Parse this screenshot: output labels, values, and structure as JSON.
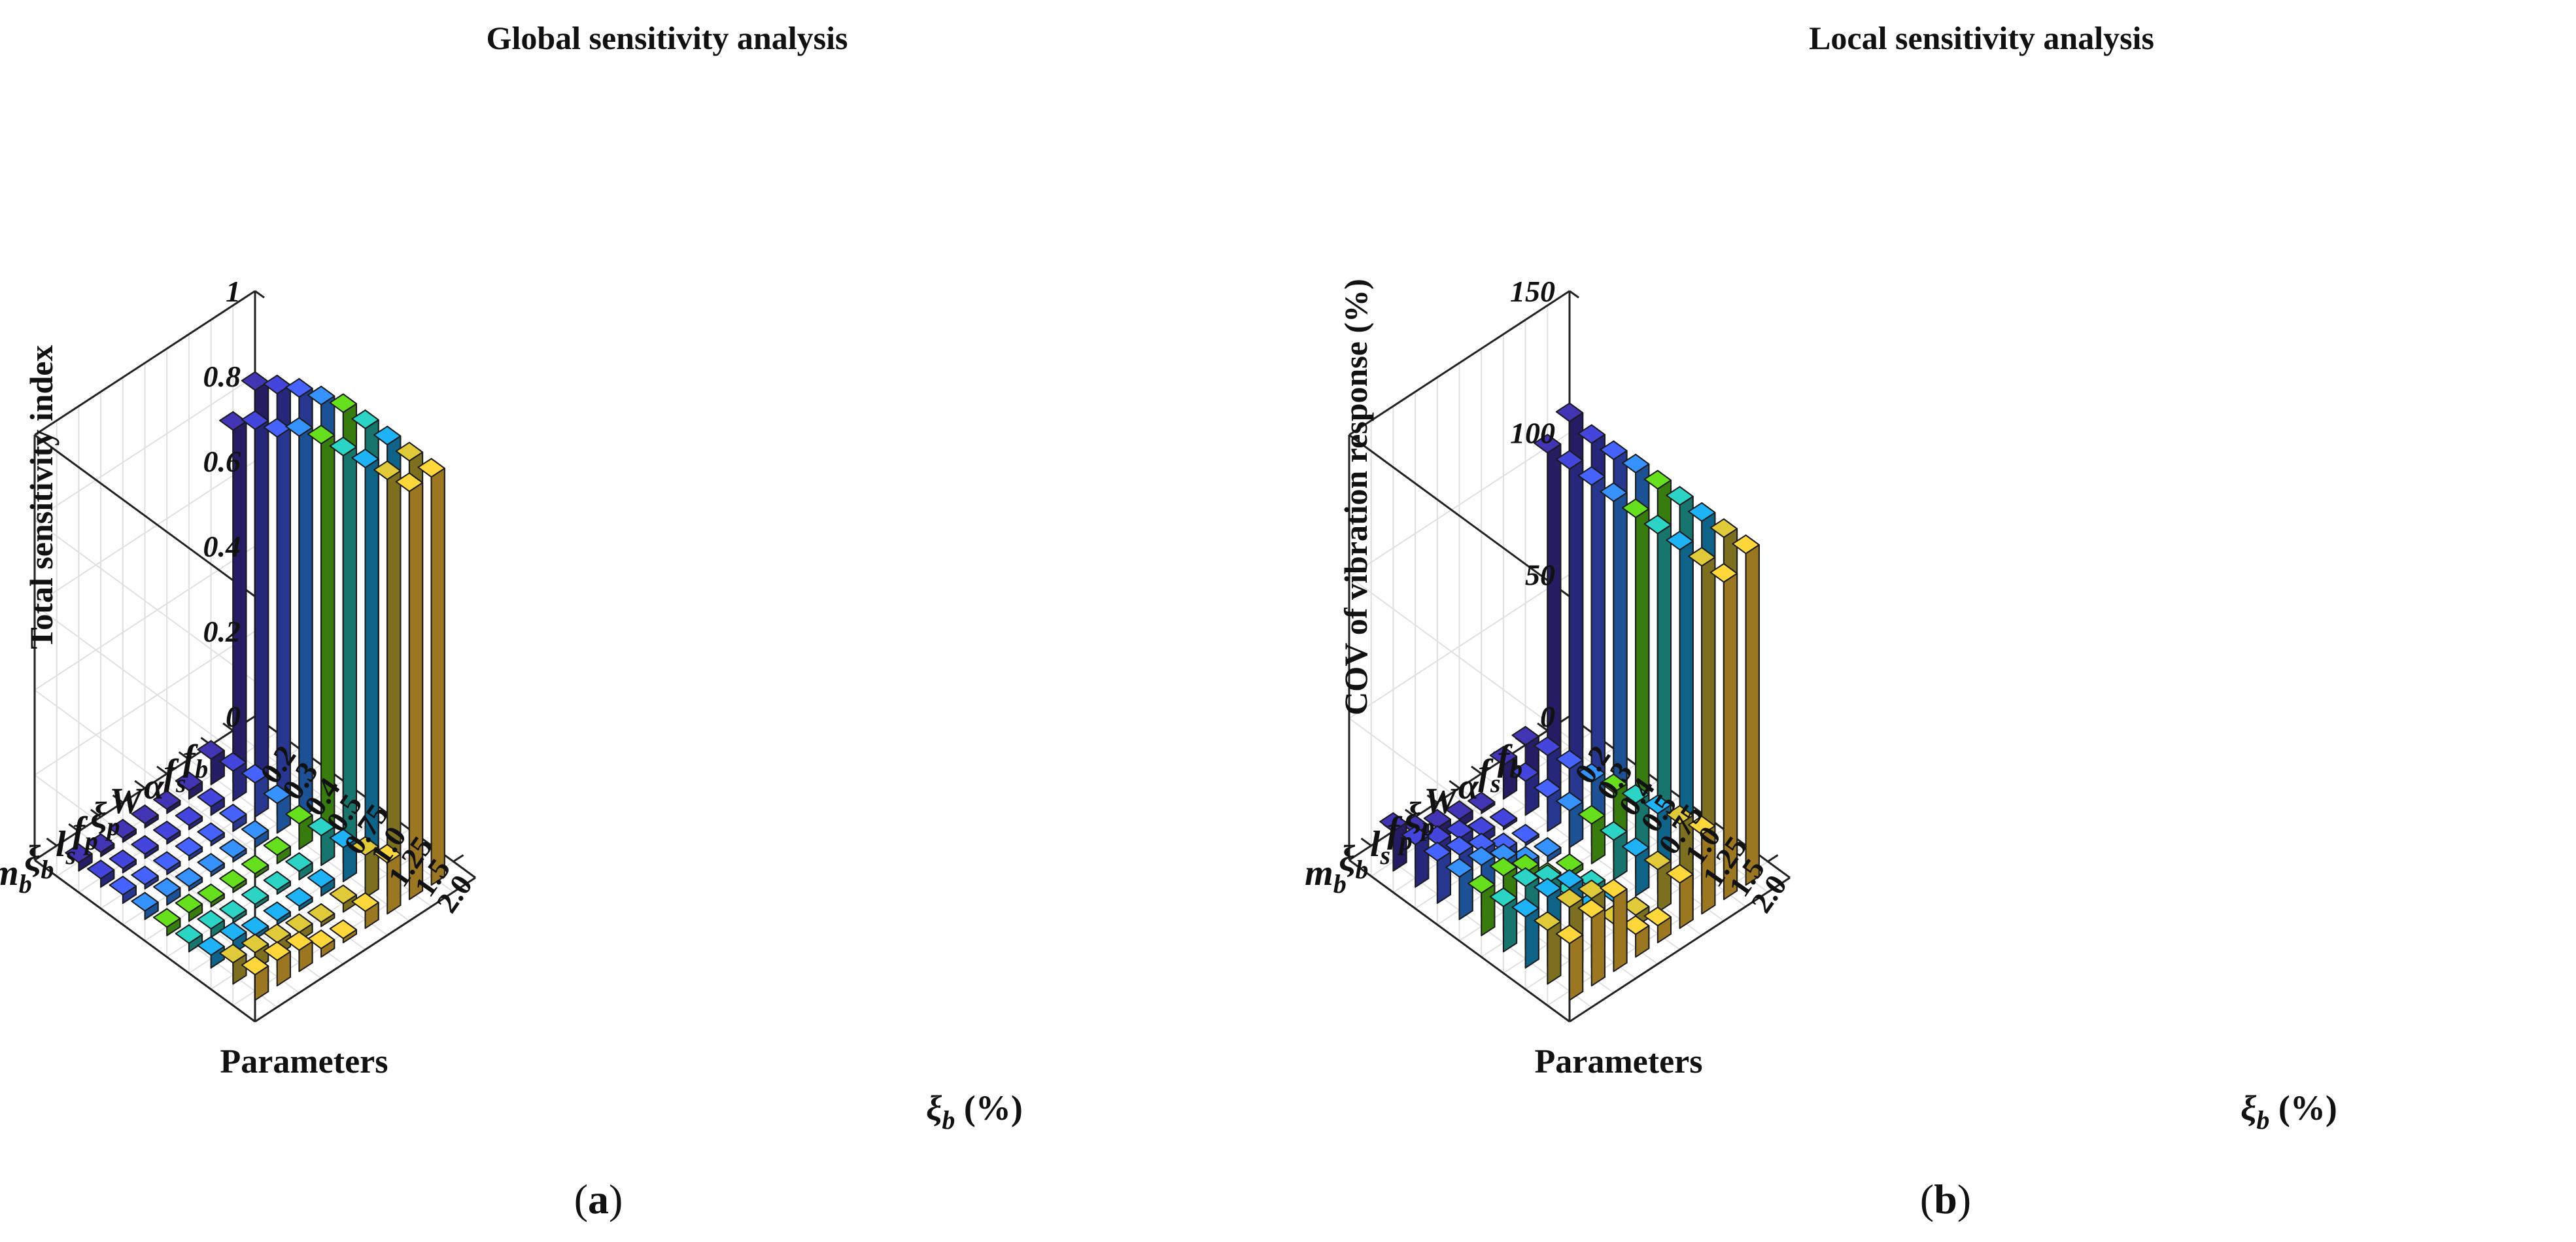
{
  "caption_letters": [
    "a",
    "b"
  ],
  "colors": {
    "palette": [
      "#3a2fa0",
      "#3d3ec4",
      "#3f58e6",
      "#2f82f0",
      "#5bc81a",
      "#26bdb0",
      "#1aa0dc",
      "#c8b434",
      "#fcc035",
      "#fafa1a"
    ],
    "grid": "#e0e0e0",
    "axis": "#222222",
    "edge": "#1a1a1a"
  },
  "chart_data": [
    {
      "type": "bar3d",
      "panel_label": "a",
      "title": "Global sensitivity analysis",
      "zlabel": "Total sensitivity index",
      "zlim": [
        0,
        1
      ],
      "zticks": [
        "0",
        "0.2",
        "0.4",
        "0.6",
        "0.8",
        "1"
      ],
      "parameters": [
        {
          "base": "f",
          "sub": "b"
        },
        {
          "base": "f",
          "sub": "s"
        },
        {
          "base": "α",
          "sub": ""
        },
        {
          "base": "W",
          "sub": ""
        },
        {
          "base": "ξ",
          "sub": "p"
        },
        {
          "base": "f",
          "sub": "p"
        },
        {
          "base": "l",
          "sub": "s"
        },
        {
          "base": "ξ",
          "sub": "b"
        },
        {
          "base": "m",
          "sub": "b"
        }
      ],
      "parameter_axis_label": "Parameters",
      "xi_values": [
        "0.2",
        "0.3",
        "0.4",
        "0.5",
        "0.75",
        "1.0",
        "1.25",
        "1.5",
        "2.0"
      ],
      "xi_axis_label": {
        "sym": "ξ",
        "sub": "b",
        "unit": " (%)"
      },
      "values": [
        [
          0.86,
          0.89,
          0.92,
          0.94,
          0.96,
          0.96,
          0.96,
          0.96,
          0.96
        ],
        [
          0.8,
          0.84,
          0.86,
          0.9,
          0.92,
          0.93,
          0.94,
          0.95,
          0.96
        ],
        [
          0.06,
          0.07,
          0.08,
          0.07,
          0.06,
          0.07,
          0.08,
          0.1,
          0.12
        ],
        [
          0.02,
          0.02,
          0.02,
          0.02,
          0.02,
          0.02,
          0.02,
          0.02,
          0.04
        ],
        [
          0.01,
          0.01,
          0.01,
          0.01,
          0.01,
          0.01,
          0.01,
          0.01,
          0.01
        ],
        [
          0.01,
          0.01,
          0.01,
          0.01,
          0.01,
          0.01,
          0.01,
          0.02,
          0.02
        ],
        [
          0.01,
          0.01,
          0.01,
          0.01,
          0.01,
          0.01,
          0.01,
          0.03,
          0.05
        ],
        [
          0.01,
          0.01,
          0.01,
          0.02,
          0.02,
          0.02,
          0.03,
          0.04,
          0.06
        ],
        [
          0.02,
          0.02,
          0.02,
          0.02,
          0.02,
          0.02,
          0.03,
          0.05,
          0.06
        ]
      ]
    },
    {
      "type": "bar3d",
      "panel_label": "b",
      "title": "Local sensitivity analysis",
      "zlabel": "COV of vibration response (%)",
      "zlim": [
        0,
        150
      ],
      "zticks": [
        "0",
        "50",
        "100",
        "150"
      ],
      "parameters": [
        {
          "base": "f",
          "sub": "b"
        },
        {
          "base": "f",
          "sub": "s"
        },
        {
          "base": "α",
          "sub": ""
        },
        {
          "base": "W",
          "sub": ""
        },
        {
          "base": "ξ",
          "sub": "p"
        },
        {
          "base": "f",
          "sub": "p"
        },
        {
          "base": "l",
          "sub": "s"
        },
        {
          "base": "ξ",
          "sub": "b"
        },
        {
          "base": "m",
          "sub": "b"
        }
      ],
      "parameter_axis_label": "Parameters",
      "xi_values": [
        "0.2",
        "0.3",
        "0.4",
        "0.5",
        "0.75",
        "1.0",
        "1.25",
        "1.5",
        "2.0"
      ],
      "xi_axis_label": {
        "sym": "ξ",
        "sub": "b",
        "unit": " (%)"
      },
      "values": [
        [
          118,
          116,
          116,
          117,
          117,
          117,
          117,
          117,
          117
        ],
        [
          112,
          112,
          112,
          112,
          112,
          112,
          112,
          112,
          112
        ],
        [
          14,
          16,
          17,
          18,
          20,
          22,
          24,
          26,
          28
        ],
        [
          12,
          12,
          12,
          13,
          14,
          14,
          14,
          15,
          16
        ],
        [
          1,
          1,
          1,
          2,
          2,
          2,
          3,
          4,
          6
        ],
        [
          3,
          3,
          3,
          4,
          4,
          4,
          5,
          6,
          8
        ],
        [
          5,
          7,
          8,
          10,
          12,
          14,
          18,
          20,
          26
        ],
        [
          8,
          10,
          12,
          14,
          16,
          18,
          20,
          22,
          24
        ],
        [
          14,
          15,
          15,
          15,
          15,
          16,
          18,
          19,
          20
        ]
      ]
    }
  ]
}
